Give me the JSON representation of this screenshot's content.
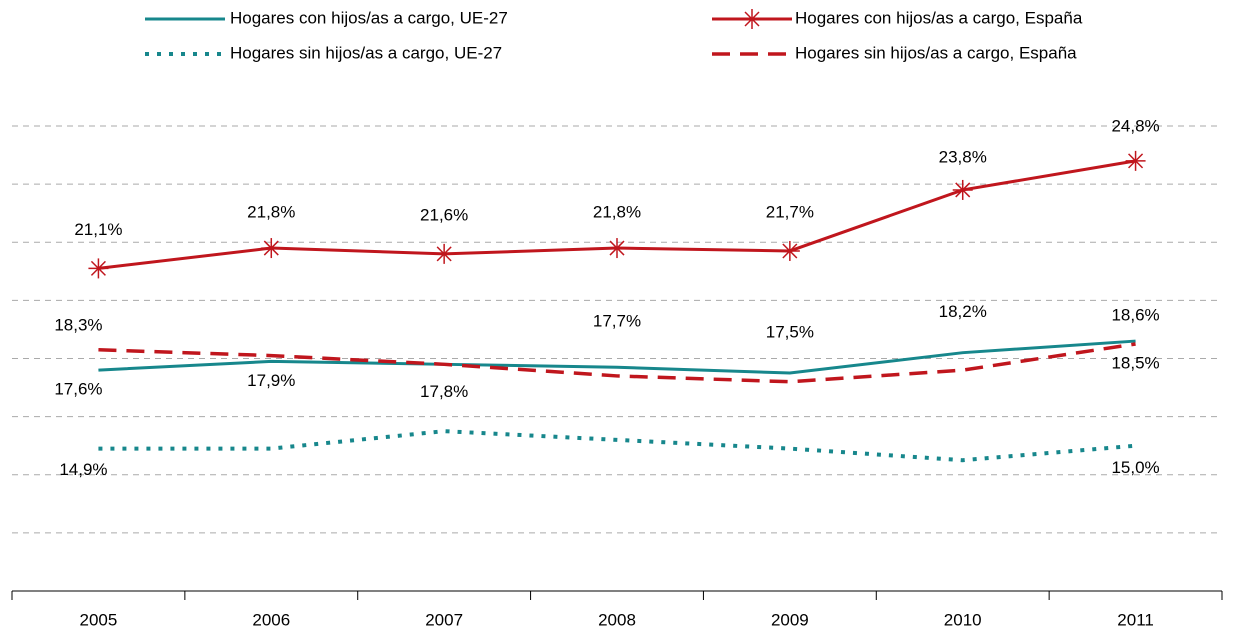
{
  "chart_data": {
    "type": "line",
    "categories": [
      "2005",
      "2006",
      "2007",
      "2008",
      "2009",
      "2010",
      "2011"
    ],
    "ylim": [
      10,
      26
    ],
    "yticks": [
      10,
      12,
      14,
      16,
      18,
      20,
      22,
      24,
      26
    ],
    "grid": true,
    "legend": "top",
    "series": [
      {
        "name": "Hogares con hijos/as a cargo, UE-27",
        "color": "#17878c",
        "style": "solid",
        "marker": null,
        "values": [
          17.6,
          17.9,
          17.8,
          17.7,
          17.5,
          18.2,
          18.6
        ],
        "value_labels": [
          "17,6%",
          "17,9%",
          "17,8%",
          "17,7%",
          "17,5%",
          "18,2%",
          "18,6%"
        ]
      },
      {
        "name": "Hogares con hijos/as a cargo, España",
        "color": "#c0161d",
        "style": "solid",
        "marker": "star",
        "values": [
          21.1,
          21.8,
          21.6,
          21.8,
          21.7,
          23.8,
          24.8
        ],
        "value_labels": [
          "21,1%",
          "21,8%",
          "21,6%",
          "21,8%",
          "21,7%",
          "23,8%",
          "24,8%"
        ]
      },
      {
        "name": "Hogares sin hijos/as a cargo, UE-27",
        "color": "#17878c",
        "style": "dotted",
        "marker": null,
        "values": [
          14.9,
          14.9,
          15.5,
          15.2,
          14.9,
          14.5,
          15.0
        ],
        "value_labels": [
          "14,9%",
          null,
          null,
          null,
          null,
          null,
          "15,0%"
        ]
      },
      {
        "name": "Hogares sin hijos/as a cargo, España",
        "color": "#c0161d",
        "style": "dashed",
        "marker": null,
        "values": [
          18.3,
          18.1,
          17.8,
          17.4,
          17.2,
          17.6,
          18.5
        ],
        "value_labels": [
          "18,3%",
          null,
          null,
          null,
          null,
          null,
          "18,5%"
        ]
      }
    ]
  }
}
